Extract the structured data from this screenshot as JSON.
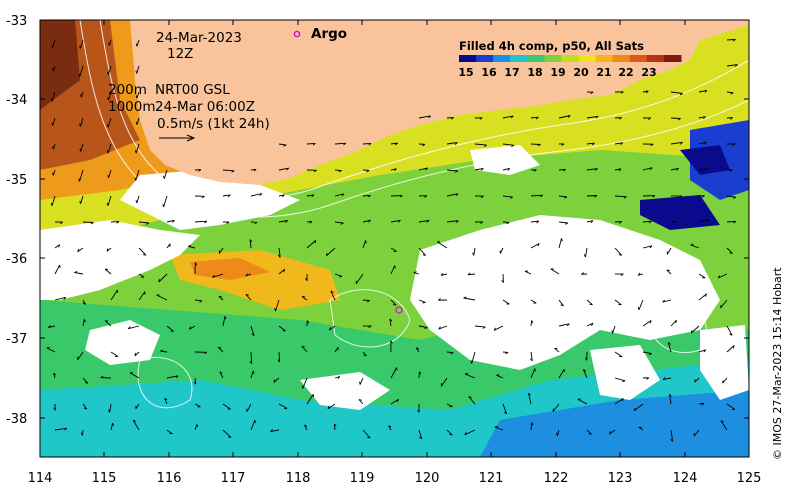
{
  "map": {
    "date_line": "24-Mar-2023",
    "time_line": "12Z",
    "contour_line": "200m",
    "contour_line2": "1000m",
    "product_line1": "NRT00 GSL",
    "product_line2": "24-Mar 06:00Z",
    "scale_arrow_label": "0.5m/s (1kt 24h)",
    "argo_label": "Argo",
    "argo_color": "#e000e0",
    "credit": "© IMOS 27-Mar-2023 15:14 Hobart",
    "lat_ticks": [
      "-33",
      "-34",
      "-35",
      "-36",
      "-37",
      "-38"
    ],
    "lon_ticks": [
      "114",
      "115",
      "116",
      "117",
      "118",
      "119",
      "120",
      "121",
      "122",
      "123",
      "124",
      "125"
    ]
  },
  "colorbar": {
    "title": "Filled 4h comp, p50, All Sats",
    "labels": [
      "15",
      "16",
      "17",
      "18",
      "19",
      "20",
      "21",
      "22",
      "23"
    ],
    "colors": [
      "#0a0a8c",
      "#1a3fd0",
      "#1d8ee0",
      "#1fc7c9",
      "#39c96a",
      "#7fd13b",
      "#c2dc1e",
      "#f2e01a",
      "#f4b41a",
      "#ee8a1a",
      "#e0561c",
      "#b8321a",
      "#7a1c10"
    ]
  },
  "land_color": "#f9c49b"
}
